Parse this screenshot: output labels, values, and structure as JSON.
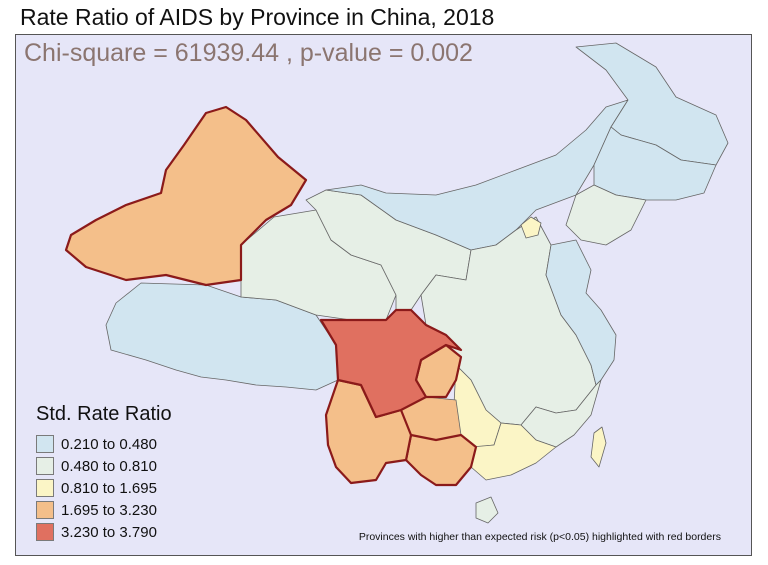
{
  "title": "Rate Ratio of AIDS by Province in China, 2018",
  "statistic": "Chi-square = 61939.44 , p-value = 0.002",
  "legend": {
    "title": "Std. Rate Ratio",
    "items": [
      {
        "label": "0.210 to 0.480",
        "color": "#d1e5f0"
      },
      {
        "label": "0.480 to 0.810",
        "color": "#e6efe6"
      },
      {
        "label": "0.810 to 1.695",
        "color": "#fbf5c6"
      },
      {
        "label": "1.695 to 3.230",
        "color": "#f4bf8a"
      },
      {
        "label": "3.230 to 3.790",
        "color": "#e07060"
      }
    ]
  },
  "footnote": "Provinces with higher than expected risk (p<0.05) highlighted with red borders",
  "colors": {
    "panel_background": "#e6e6f8",
    "province_border": "#666666",
    "highlight_border": "#8b1a1a",
    "stat_text": "#8b7570"
  },
  "regions": {
    "xinjiang": {
      "class": 3,
      "highlighted": true
    },
    "tibet": {
      "class": 0,
      "highlighted": false
    },
    "qinghai": {
      "class": 1,
      "highlighted": false
    },
    "gansu": {
      "class": 1,
      "highlighted": false
    },
    "inner_mongolia": {
      "class": 0,
      "highlighted": false
    },
    "heilongjiang": {
      "class": 0,
      "highlighted": false
    },
    "jilin": {
      "class": 0,
      "highlighted": false
    },
    "liaoning": {
      "class": 1,
      "highlighted": false
    },
    "sichuan": {
      "class": 4,
      "highlighted": true
    },
    "chongqing": {
      "class": 3,
      "highlighted": true
    },
    "yunnan": {
      "class": 3,
      "highlighted": true
    },
    "guizhou": {
      "class": 3,
      "highlighted": false
    },
    "guangxi": {
      "class": 3,
      "highlighted": true
    },
    "guangdong": {
      "class": 2,
      "highlighted": false
    },
    "hunan": {
      "class": 2,
      "highlighted": false
    },
    "beijing": {
      "class": 2,
      "highlighted": false
    },
    "hainan": {
      "class": 1,
      "highlighted": false
    },
    "taiwan": {
      "class": 2,
      "highlighted": false
    },
    "central_east": {
      "class": 1,
      "highlighted": false
    },
    "east_coast": {
      "class": 0,
      "highlighted": false
    }
  }
}
